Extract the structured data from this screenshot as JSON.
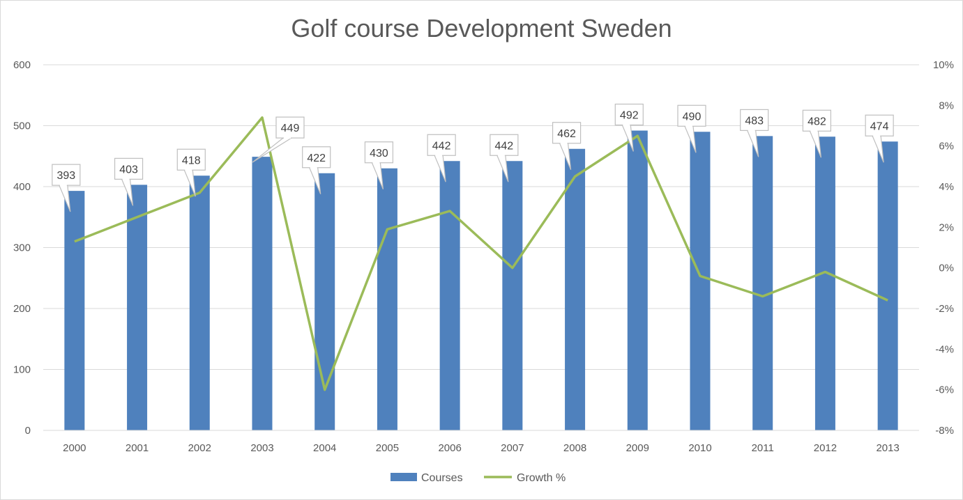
{
  "chart_data": {
    "type": "bar",
    "title": "Golf course Development Sweden",
    "categories": [
      "2000",
      "2001",
      "2002",
      "2003",
      "2004",
      "2005",
      "2006",
      "2007",
      "2008",
      "2009",
      "2010",
      "2011",
      "2012",
      "2013"
    ],
    "series": [
      {
        "name": "Courses",
        "type": "bar",
        "axis": "left",
        "color": "#4f81bd",
        "values": [
          393,
          403,
          418,
          449,
          422,
          430,
          442,
          442,
          462,
          492,
          490,
          483,
          482,
          474
        ]
      },
      {
        "name": "Growth %",
        "type": "line",
        "axis": "right",
        "color": "#9bbb59",
        "values": [
          1.3,
          2.5,
          3.7,
          7.4,
          -6.0,
          1.9,
          2.8,
          0.0,
          4.5,
          6.5,
          -0.4,
          -1.4,
          -0.2,
          -1.6
        ]
      }
    ],
    "y_left": {
      "min": 0,
      "max": 600,
      "ticks": [
        "0",
        "100",
        "200",
        "300",
        "400",
        "500",
        "600"
      ]
    },
    "y_right": {
      "min": -8,
      "max": 10,
      "ticks": [
        "-8%",
        "-6%",
        "-4%",
        "-2%",
        "0%",
        "2%",
        "4%",
        "6%",
        "8%",
        "10%"
      ]
    },
    "grid": true,
    "legend": "bottom"
  }
}
